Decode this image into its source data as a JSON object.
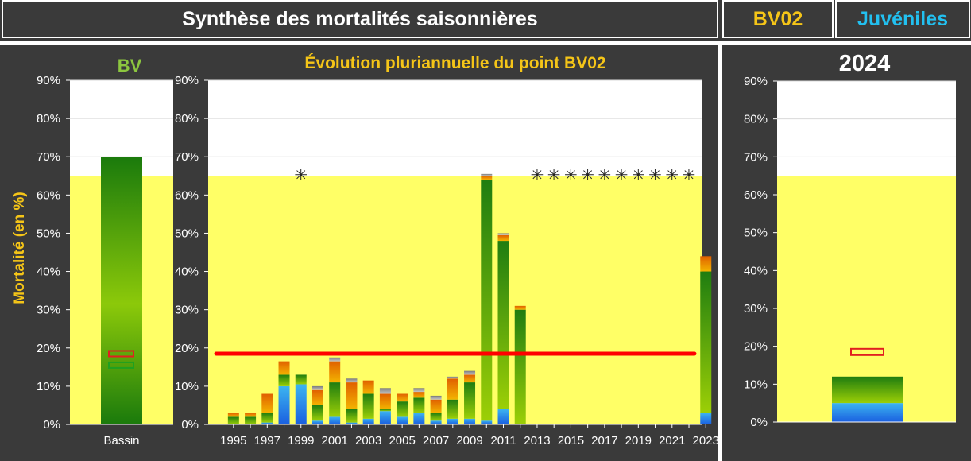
{
  "header": {
    "title": "Synthèse des mortalités saisonnières",
    "station": "BV02",
    "stage": "Juvéniles"
  },
  "colors": {
    "threshold_zone": "#ffff66",
    "reference_line": "#ff0000",
    "title_yellow": "#f5c518",
    "title_cyan": "#22c0f0",
    "title_green": "#8cc63f"
  },
  "chart_data": [
    {
      "type": "bar",
      "title": "BV",
      "ylabel": "Mortalité (en %)",
      "categories": [
        "Bassin"
      ],
      "ylim": [
        0,
        90
      ],
      "yticks": [
        "0%",
        "10%",
        "20%",
        "30%",
        "40%",
        "50%",
        "60%",
        "70%",
        "80%",
        "90%"
      ],
      "threshold_zone": [
        0,
        65
      ],
      "total": 70,
      "markers": [
        {
          "kind": "red-box",
          "value": 18.5
        },
        {
          "kind": "green-box",
          "value": 15.5
        }
      ]
    },
    {
      "type": "bar",
      "title": "Évolution pluriannuelle du point BV02",
      "ylim": [
        0,
        90
      ],
      "yticks": [
        "0%",
        "10%",
        "20%",
        "30%",
        "40%",
        "50%",
        "60%",
        "70%",
        "80%",
        "90%"
      ],
      "threshold_zone": [
        0,
        65
      ],
      "reference_line": 18.5,
      "x": [
        1995,
        1996,
        1997,
        1998,
        1999,
        2000,
        2001,
        2002,
        2003,
        2004,
        2005,
        2006,
        2007,
        2008,
        2009,
        2010,
        2011,
        2012,
        2013,
        2014,
        2015,
        2016,
        2017,
        2018,
        2019,
        2020,
        2021,
        2022,
        2023
      ],
      "xtick_labels": [
        "1995",
        "1997",
        "1999",
        "2001",
        "2003",
        "2005",
        "2007",
        "2009",
        "2011",
        "2013",
        "2015",
        "2017",
        "2019",
        "2021",
        "2023"
      ],
      "series": [
        {
          "component": "blue",
          "values": [
            0,
            0,
            0.5,
            10,
            10.5,
            1,
            2,
            0.5,
            1.5,
            3.5,
            2,
            3,
            1,
            1.5,
            1.5,
            1,
            4,
            0,
            0,
            0,
            0,
            0,
            0,
            0,
            0,
            0,
            0,
            0,
            3
          ]
        },
        {
          "component": "green",
          "values": [
            2,
            2,
            2.5,
            3,
            2.5,
            4,
            9,
            3.5,
            6.5,
            0.5,
            4,
            4,
            2,
            5,
            9.5,
            63,
            44,
            30,
            0,
            0,
            0,
            0,
            0,
            0,
            0,
            0,
            0,
            0,
            37
          ]
        },
        {
          "component": "orange",
          "values": [
            1,
            1,
            5,
            3.5,
            0,
            4,
            5.5,
            7,
            3.5,
            4,
            2,
            1.5,
            3.5,
            5.5,
            2,
            1,
            1.5,
            1,
            0,
            0,
            0,
            0,
            0,
            0,
            0,
            0,
            0,
            0,
            4
          ]
        },
        {
          "component": "grey",
          "values": [
            0,
            0,
            0,
            0,
            0,
            1,
            1,
            1,
            0,
            1.5,
            0,
            1,
            1,
            0.5,
            1,
            0.5,
            0.5,
            0,
            0,
            0,
            0,
            0,
            0,
            0,
            0,
            0,
            0,
            0,
            0
          ]
        }
      ],
      "no_data_years": [
        1999,
        2013,
        2014,
        2015,
        2016,
        2017,
        2018,
        2019,
        2020,
        2021,
        2022
      ],
      "no_data_marker": "✳"
    },
    {
      "type": "bar",
      "title": "2024",
      "ylim": [
        0,
        90
      ],
      "yticks": [
        "0%",
        "10%",
        "20%",
        "30%",
        "40%",
        "50%",
        "60%",
        "70%",
        "80%",
        "90%"
      ],
      "threshold_zone": [
        0,
        65
      ],
      "total": 12,
      "blue_part": 5,
      "markers": [
        {
          "kind": "red-box",
          "value": 18.5
        }
      ]
    }
  ]
}
